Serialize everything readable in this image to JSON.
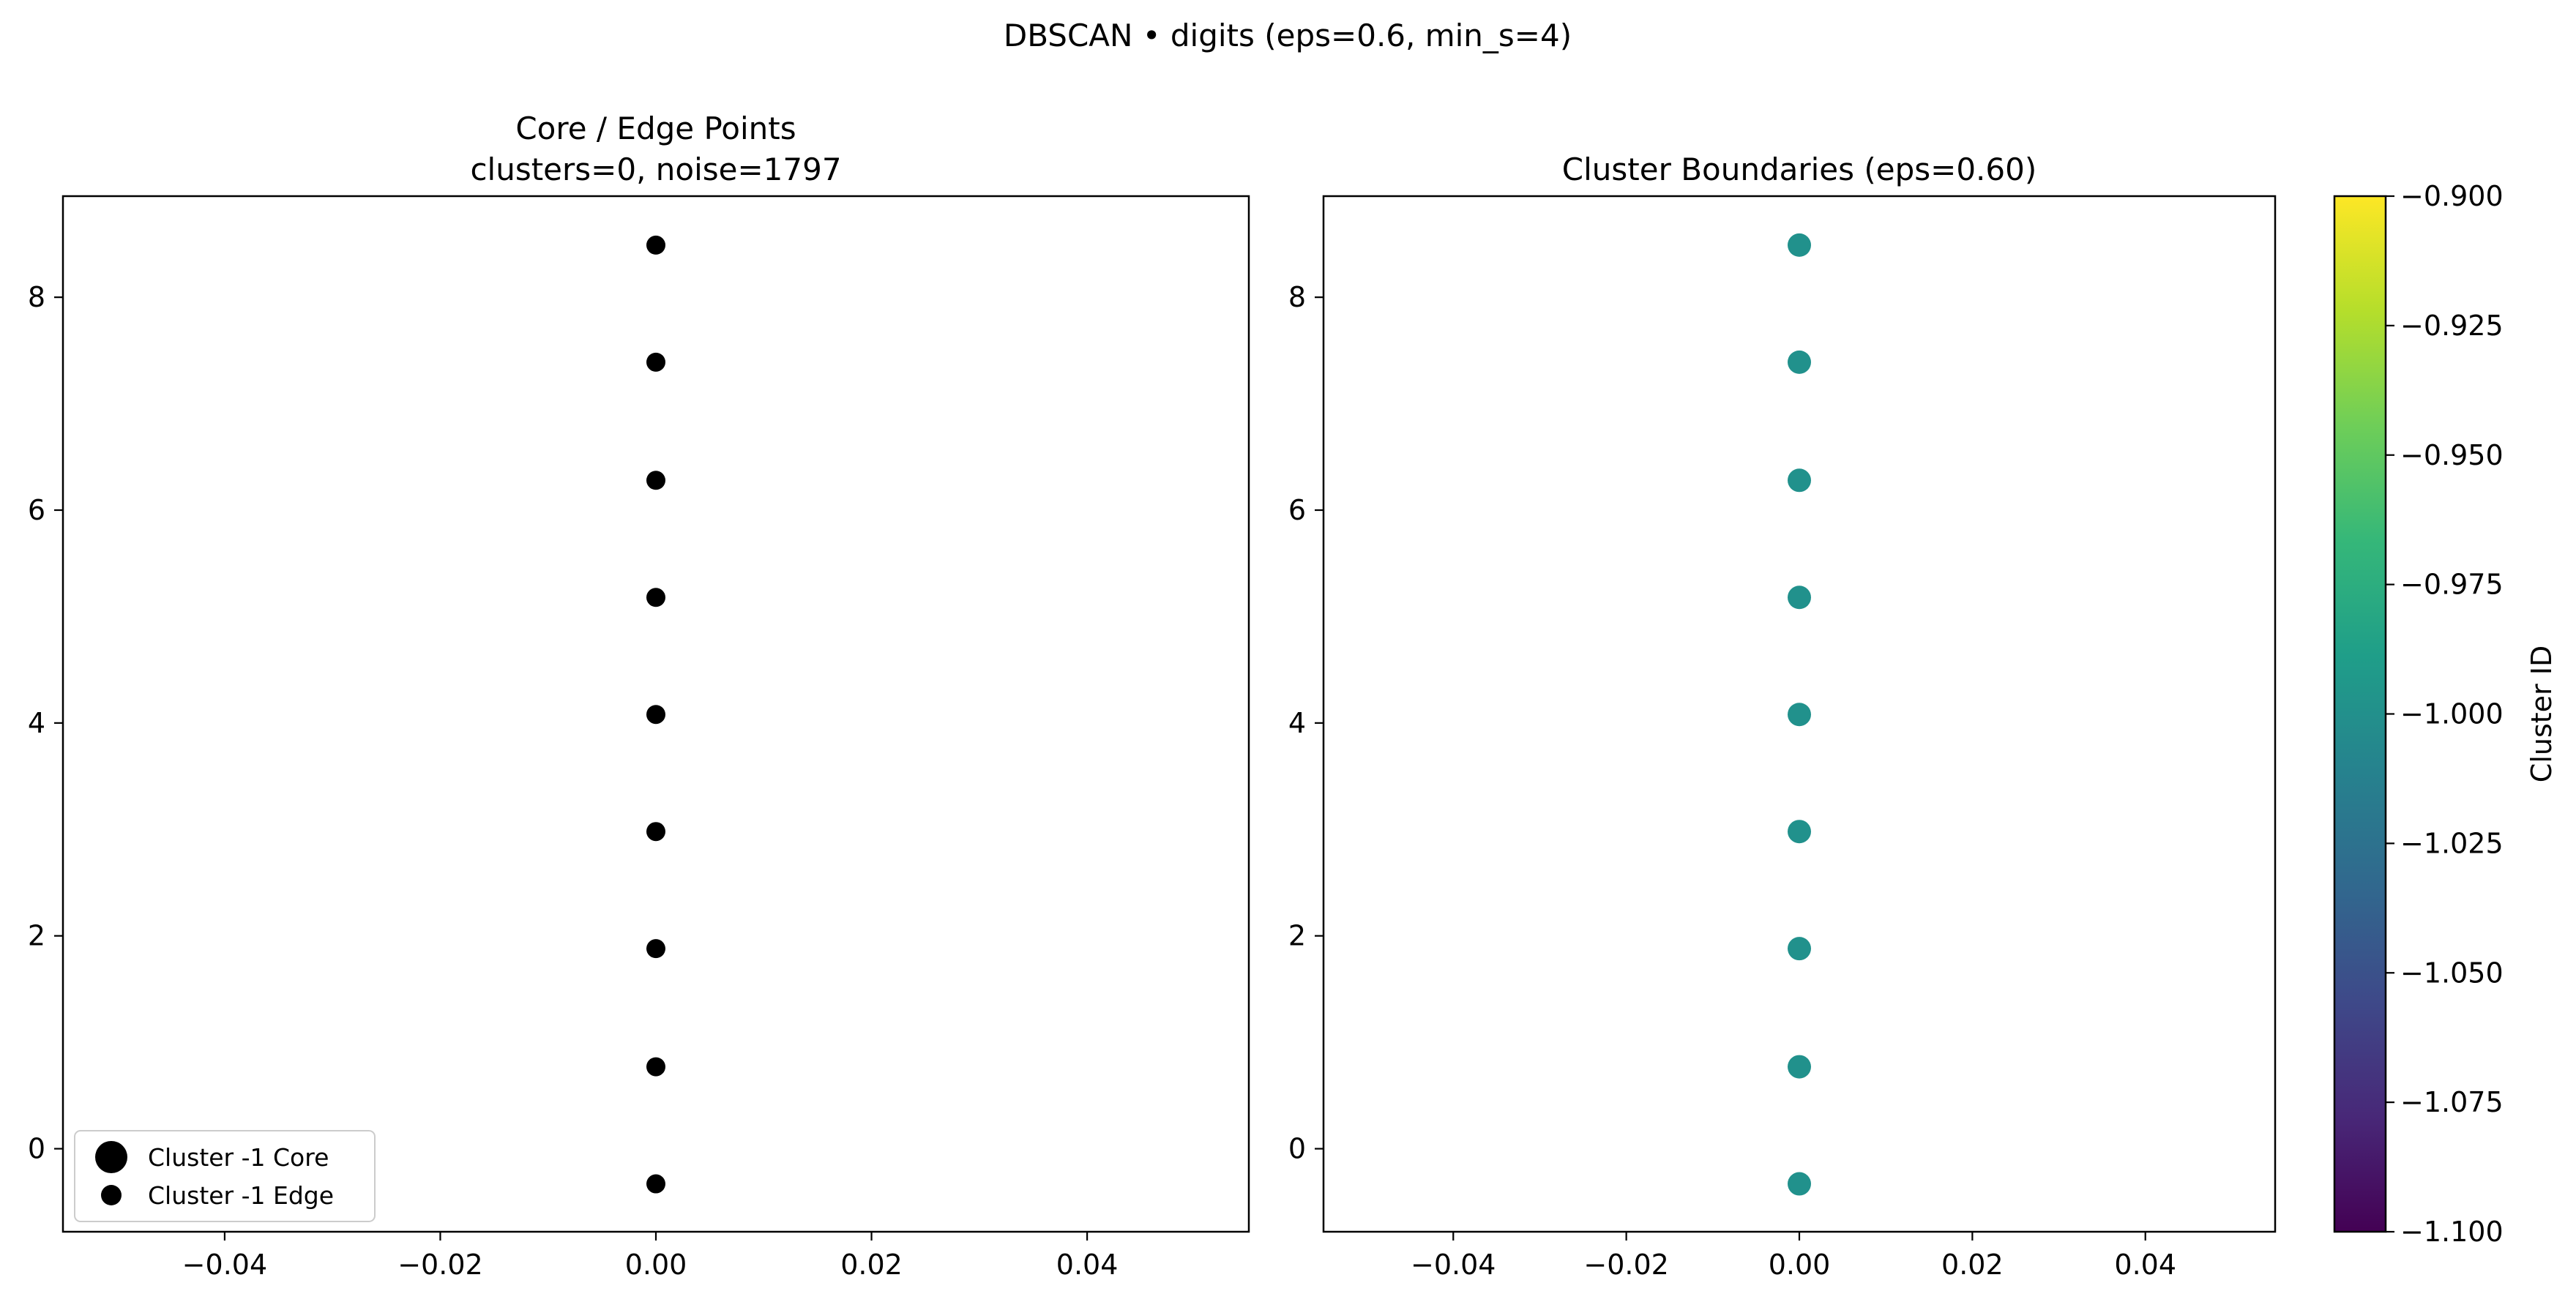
{
  "figure": {
    "suptitle": "DBSCAN • digits  (eps=0.6, min_s=4)"
  },
  "chart_data": [
    {
      "type": "scatter",
      "title": "Core / Edge Points\nclusters=0, noise=1797",
      "title_lines": [
        "Core / Edge Points",
        "clusters=0, noise=1797"
      ],
      "xlabel": "",
      "ylabel": "",
      "xlim": [
        -0.055,
        0.055
      ],
      "ylim": [
        -0.78,
        8.95
      ],
      "xticks": [
        -0.04,
        -0.02,
        0.0,
        0.02,
        0.04
      ],
      "xtick_labels": [
        "−0.04",
        "−0.02",
        "0.00",
        "0.02",
        "0.04"
      ],
      "yticks": [
        0,
        2,
        4,
        6,
        8
      ],
      "ytick_labels": [
        "0",
        "2",
        "4",
        "6",
        "8"
      ],
      "grid": false,
      "legend": {
        "position": "lower-left",
        "entries": [
          {
            "label": "Cluster -1 Core",
            "marker": "large"
          },
          {
            "label": "Cluster -1 Edge",
            "marker": "small"
          }
        ]
      },
      "series": [
        {
          "name": "Cluster -1 Edge",
          "color": "#000000",
          "x": [
            0,
            0,
            0,
            0,
            0,
            0,
            0,
            0,
            0
          ],
          "y": [
            -0.33,
            0.77,
            1.88,
            2.98,
            4.08,
            5.18,
            6.28,
            7.39,
            8.49
          ]
        }
      ]
    },
    {
      "type": "scatter",
      "title": "Cluster Boundaries  (eps=0.60)",
      "title_lines": [
        "Cluster Boundaries  (eps=0.60)"
      ],
      "xlabel": "",
      "ylabel": "",
      "xlim": [
        -0.055,
        0.055
      ],
      "ylim": [
        -0.78,
        8.95
      ],
      "xticks": [
        -0.04,
        -0.02,
        0.0,
        0.02,
        0.04
      ],
      "xtick_labels": [
        "−0.04",
        "−0.02",
        "0.00",
        "0.02",
        "0.04"
      ],
      "yticks": [
        0,
        2,
        4,
        6,
        8
      ],
      "ytick_labels": [
        "0",
        "2",
        "4",
        "6",
        "8"
      ],
      "grid": false,
      "series": [
        {
          "color": "#21918c",
          "x": [
            0,
            0,
            0,
            0,
            0,
            0,
            0,
            0,
            0
          ],
          "y": [
            -0.33,
            0.77,
            1.88,
            2.98,
            4.08,
            5.18,
            6.28,
            7.39,
            8.49
          ]
        }
      ],
      "colorbar": {
        "label": "Cluster ID",
        "colormap": "viridis",
        "range": [
          -1.1,
          -0.9
        ],
        "ticks": [
          -1.1,
          -1.075,
          -1.05,
          -1.025,
          -1.0,
          -0.975,
          -0.95,
          -0.925,
          -0.9
        ],
        "tick_labels": [
          "−1.100",
          "−1.075",
          "−1.050",
          "−1.025",
          "−1.000",
          "−0.975",
          "−0.950",
          "−0.925",
          "−0.900"
        ],
        "stops": [
          "#440154",
          "#482878",
          "#3e4989",
          "#31688e",
          "#26828e",
          "#1f9e89",
          "#35b779",
          "#6ece58",
          "#b5de2b",
          "#fde725"
        ]
      }
    }
  ]
}
